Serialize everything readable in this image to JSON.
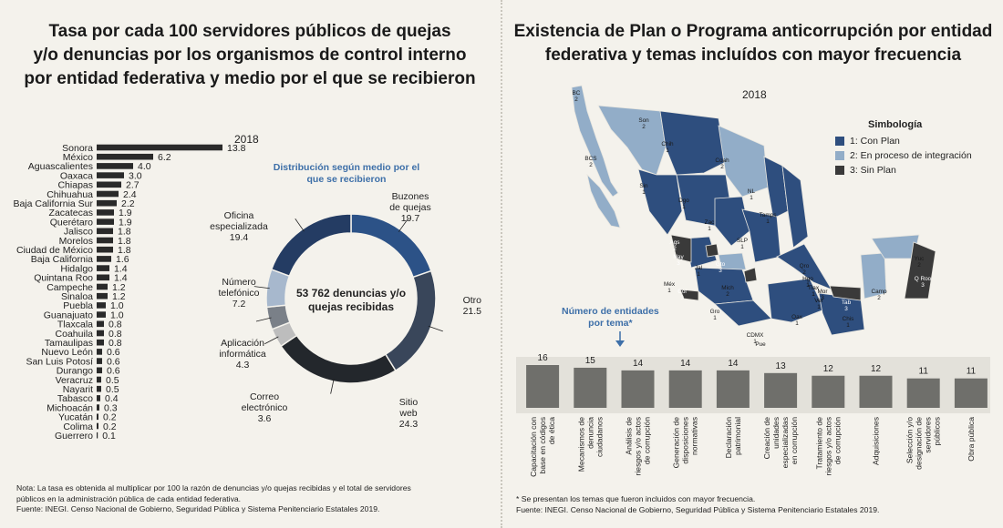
{
  "left": {
    "title_lines": [
      "Tasa por cada 100 servidores públicos de quejas",
      "y/o denuncias por los organismos de control interno",
      "por entidad federativa y medio por el que se recibieron"
    ],
    "year": "2018",
    "note_lines": [
      "Nota: La tasa es obtenida al multiplicar por 100 la razón de denuncias y/o quejas recibidas y el total de servidores",
      "públicos en la administración pública de cada entidad federativa.",
      "Fuente: INEGI. Censo Nacional de Gobierno, Seguridad Pública y Sistema Penitenciario Estatales 2019."
    ]
  },
  "right": {
    "title_lines": [
      "Existencia de Plan o Programa anticorrupción por entidad",
      "federativa y temas incluídos con mayor frecuencia"
    ],
    "year": "2018",
    "legend_title": "Simbología",
    "legend": [
      {
        "label": "1: Con Plan",
        "color": "#2e4e7e"
      },
      {
        "label": "2: En proceso de integración",
        "color": "#92adc8"
      },
      {
        "label": "3: Sin Plan",
        "color": "#3a3a3a"
      }
    ],
    "topics_caption_lines": [
      "Número de entidades",
      "por tema*"
    ],
    "note_lines": [
      "* Se presentan los temas que fueron incluidos con mayor frecuencia.",
      "Fuente: INEGI. Censo Nacional de Gobierno, Seguridad Pública y Sistema Penitenciario Estatales 2019."
    ],
    "map_labels": [
      {
        "abbr": "BC",
        "v": "2"
      },
      {
        "abbr": "Son",
        "v": "2"
      },
      {
        "abbr": "Chih",
        "v": "1"
      },
      {
        "abbr": "BCS",
        "v": "2"
      },
      {
        "abbr": "Coah",
        "v": "2"
      },
      {
        "abbr": "Sin",
        "v": "1"
      },
      {
        "abbr": "Dgo",
        "v": "1"
      },
      {
        "abbr": "NL",
        "v": "1"
      },
      {
        "abbr": "Tamps",
        "v": "1"
      },
      {
        "abbr": "Zac",
        "v": "1"
      },
      {
        "abbr": "SLP",
        "v": "1"
      },
      {
        "abbr": "Ags",
        "v": "2"
      },
      {
        "abbr": "Nay",
        "v": "3"
      },
      {
        "abbr": "Jal",
        "v": "1"
      },
      {
        "abbr": "Gto",
        "v": "3"
      },
      {
        "abbr": "Qro",
        "v": "2"
      },
      {
        "abbr": "Hgo",
        "v": "1"
      },
      {
        "abbr": "Yuc",
        "v": "2"
      },
      {
        "abbr": "Q Roo",
        "v": "3"
      },
      {
        "abbr": "Méx",
        "v": "1"
      },
      {
        "abbr": "Tlax",
        "v": "1"
      },
      {
        "abbr": "Col",
        "v": "3"
      },
      {
        "abbr": "Mich",
        "v": "2"
      },
      {
        "abbr": "Mor",
        "v": "3"
      },
      {
        "abbr": "Camp",
        "v": "2"
      },
      {
        "abbr": "Tab",
        "v": "3"
      },
      {
        "abbr": "Ver",
        "v": "1"
      },
      {
        "abbr": "Gro",
        "v": "1"
      },
      {
        "abbr": "Oax",
        "v": "1"
      },
      {
        "abbr": "Chis",
        "v": "1"
      },
      {
        "abbr": "CDMX",
        "v": "1"
      },
      {
        "abbr": "Pue",
        "v": "1"
      }
    ]
  },
  "chart_data": [
    {
      "type": "bar",
      "orientation": "horizontal",
      "categories": [
        "Sonora",
        "México",
        "Aguascalientes",
        "Oaxaca",
        "Chiapas",
        "Chihuahua",
        "Baja California Sur",
        "Zacatecas",
        "Querétaro",
        "Jalisco",
        "Morelos",
        "Ciudad de México",
        "Baja California",
        "Hidalgo",
        "Quintana Roo",
        "Campeche",
        "Sinaloa",
        "Puebla",
        "Guanajuato",
        "Tlaxcala",
        "Coahuila",
        "Tamaulipas",
        "Nuevo León",
        "San Luis Potosí",
        "Durango",
        "Veracruz",
        "Nayarit",
        "Tabasco",
        "Michoacán",
        "Yucatán",
        "Colima",
        "Guerrero"
      ],
      "values": [
        13.8,
        6.2,
        4.0,
        3.0,
        2.7,
        2.4,
        2.2,
        1.9,
        1.9,
        1.8,
        1.8,
        1.8,
        1.6,
        1.4,
        1.4,
        1.2,
        1.2,
        1.0,
        1.0,
        0.8,
        0.8,
        0.8,
        0.6,
        0.6,
        0.6,
        0.5,
        0.5,
        0.4,
        0.3,
        0.2,
        0.2,
        0.1
      ],
      "value_labels": [
        "13.8",
        "6.2",
        "4.0",
        "3.0",
        "2.7",
        "2.4",
        "2.2",
        "1.9",
        "1.9",
        "1.8",
        "1.8",
        "1.8",
        "1.6",
        "1.4",
        "1.4",
        "1.2",
        "1.2",
        "1.0",
        "1.0",
        "0.8",
        "0.8",
        "0.8",
        "0.6",
        "0.6",
        "0.6",
        "0.5",
        "0.5",
        "0.4",
        "0.3",
        "0.2",
        "0.2",
        "0.1"
      ],
      "bar_color": "#2a2a2a"
    },
    {
      "type": "pie",
      "donut": true,
      "title": "Distribución según medio por el que se recibieron",
      "title_lines": [
        "Distribución según medio por el",
        "que se recibieron"
      ],
      "center_lines": [
        "53 762 denuncias y/o",
        "quejas recibidas"
      ],
      "slices": [
        {
          "label": "Buzones de quejas",
          "label_lines": [
            "Buzones",
            "de quejas"
          ],
          "value": 19.7,
          "value_label": "19.7",
          "color": "#2c5287"
        },
        {
          "label": "Otro",
          "label_lines": [
            "Otro"
          ],
          "value": 21.5,
          "value_label": "21.5",
          "color": "#39465a"
        },
        {
          "label": "Sitio web",
          "label_lines": [
            "Sitio",
            "web"
          ],
          "value": 24.3,
          "value_label": "24.3",
          "color": "#23272c"
        },
        {
          "label": "Correo electrónico",
          "label_lines": [
            "Correo",
            "electrónico"
          ],
          "value": 3.6,
          "value_label": "3.6",
          "color": "#bdbdbd"
        },
        {
          "label": "Aplicación informática",
          "label_lines": [
            "Aplicación",
            "informática"
          ],
          "value": 4.3,
          "value_label": "4.3",
          "color": "#7a8088"
        },
        {
          "label": "Número telefónico",
          "label_lines": [
            "Número",
            "telefónico"
          ],
          "value": 7.2,
          "value_label": "7.2",
          "color": "#a7b8cd"
        },
        {
          "label": "Oficina especializada",
          "label_lines": [
            "Oficina",
            "especializada"
          ],
          "value": 19.4,
          "value_label": "19.4",
          "color": "#243c63"
        }
      ]
    },
    {
      "type": "bar",
      "orientation": "vertical",
      "categories": [
        "Capacitación con base en códigos de ética",
        "Mecanismos de denuncia ciudadanos",
        "Análisis de riesgos y/o actos de corrupción",
        "Generación de disposiciones normativas",
        "Declaración patrimonial",
        "Creación de unidades especializadas en corrupción",
        "Tratamiento de riesgos y/o actos de corrupción",
        "Adquisiciones",
        "Selección y/o designación de servidores públicos",
        "Obra pública"
      ],
      "category_lines": [
        [
          "Capacitación con",
          "base en códigos",
          "de ética"
        ],
        [
          "Mecanismos de",
          "denuncia",
          "ciudadanos"
        ],
        [
          "Análisis de",
          "riesgos y/o actos",
          "de corrupción"
        ],
        [
          "Generación de",
          "disposiciones",
          "normativas"
        ],
        [
          "Declaración",
          "patrimonial"
        ],
        [
          "Creación de",
          "unidades",
          "especializadas",
          "en corrupción"
        ],
        [
          "Tratamiento de",
          "riesgos y/o actos",
          "de corrupción"
        ],
        [
          "Adquisiciones"
        ],
        [
          "Selección y/o",
          "designación de",
          "servidores",
          "públicos"
        ],
        [
          "Obra pública"
        ]
      ],
      "values": [
        16,
        15,
        14,
        14,
        14,
        13,
        12,
        12,
        11,
        11
      ],
      "value_labels": [
        "16",
        "15",
        "14",
        "14",
        "14",
        "13",
        "12",
        "12",
        "11",
        "11"
      ],
      "bar_color": "#6f6f6b"
    }
  ]
}
